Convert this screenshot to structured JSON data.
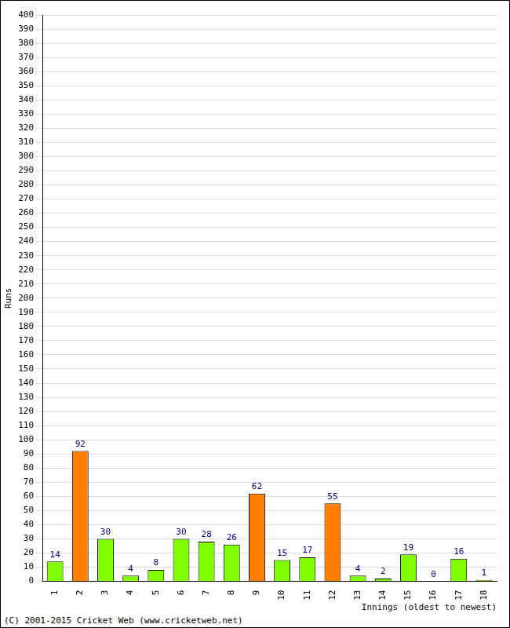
{
  "chart_data": {
    "type": "bar",
    "x_label": "Innings (oldest to newest)",
    "y_label": "Runs",
    "annotations": [
      "(C) 2001-2015 Cricket Web (www.cricketweb.net)"
    ],
    "categories": [
      "1",
      "2",
      "3",
      "4",
      "5",
      "6",
      "7",
      "8",
      "9",
      "10",
      "11",
      "12",
      "13",
      "14",
      "15",
      "16",
      "17",
      "18"
    ],
    "values": [
      14,
      92,
      30,
      4,
      8,
      30,
      28,
      26,
      62,
      15,
      17,
      55,
      4,
      2,
      19,
      0,
      16,
      1
    ],
    "colors": [
      "#80ff00",
      "#ff8000",
      "#80ff00",
      "#80ff00",
      "#80ff00",
      "#80ff00",
      "#80ff00",
      "#80ff00",
      "#ff8000",
      "#80ff00",
      "#80ff00",
      "#ff8000",
      "#80ff00",
      "#80ff00",
      "#80ff00",
      "#80ff00",
      "#80ff00",
      "#80ff00"
    ],
    "ylim": [
      0,
      400
    ],
    "yticks": [
      0,
      10,
      20,
      30,
      40,
      50,
      60,
      70,
      80,
      90,
      100,
      110,
      120,
      130,
      140,
      150,
      160,
      170,
      180,
      190,
      200,
      210,
      220,
      230,
      240,
      250,
      260,
      270,
      280,
      290,
      300,
      310,
      320,
      330,
      340,
      350,
      360,
      370,
      380,
      390,
      400
    ],
    "grid": true,
    "data_labels": true
  }
}
